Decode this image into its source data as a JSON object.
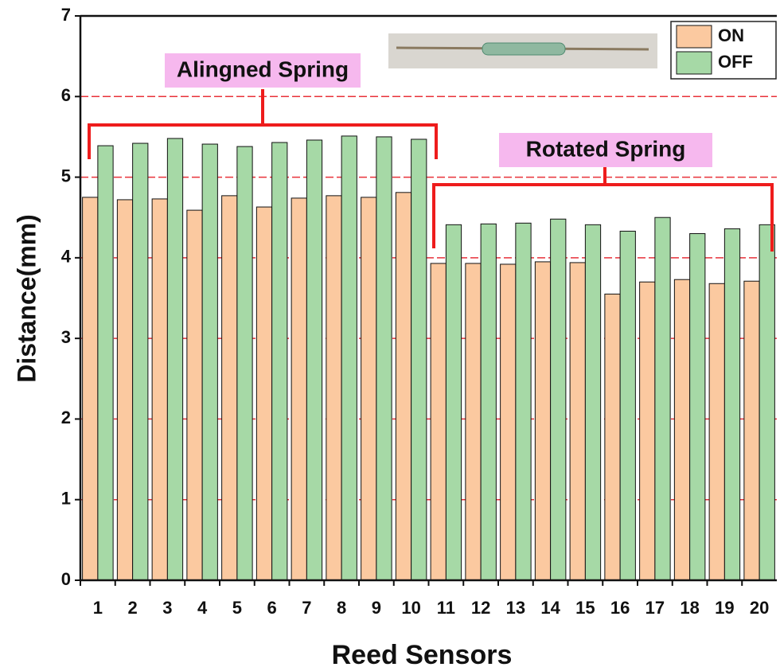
{
  "chart_data": {
    "type": "bar",
    "xlabel": "Reed Sensors",
    "ylabel": "Distance(mm)",
    "categories": [
      "1",
      "2",
      "3",
      "4",
      "5",
      "6",
      "7",
      "8",
      "9",
      "10",
      "11",
      "12",
      "13",
      "14",
      "15",
      "16",
      "17",
      "18",
      "19",
      "20"
    ],
    "series": [
      {
        "name": "ON",
        "color": "#fbc9a0",
        "values": [
          4.75,
          4.72,
          4.73,
          4.59,
          4.77,
          4.63,
          4.74,
          4.77,
          4.75,
          4.81,
          3.93,
          3.93,
          3.92,
          3.95,
          3.94,
          3.55,
          3.7,
          3.73,
          3.68,
          3.71
        ]
      },
      {
        "name": "OFF",
        "color": "#a6d9a6",
        "values": [
          5.39,
          5.42,
          5.48,
          5.41,
          5.38,
          5.43,
          5.46,
          5.51,
          5.5,
          5.47,
          4.41,
          4.42,
          4.43,
          4.48,
          4.41,
          4.33,
          4.5,
          4.3,
          4.36,
          4.41
        ]
      }
    ],
    "ylim": [
      0,
      7
    ],
    "yticks": [
      0,
      1,
      2,
      3,
      4,
      5,
      6,
      7
    ],
    "grid": true,
    "legend": "upper right",
    "annotations": [
      {
        "text": "Alingned Spring"
      },
      {
        "text": "Rotated Spring"
      }
    ]
  }
}
